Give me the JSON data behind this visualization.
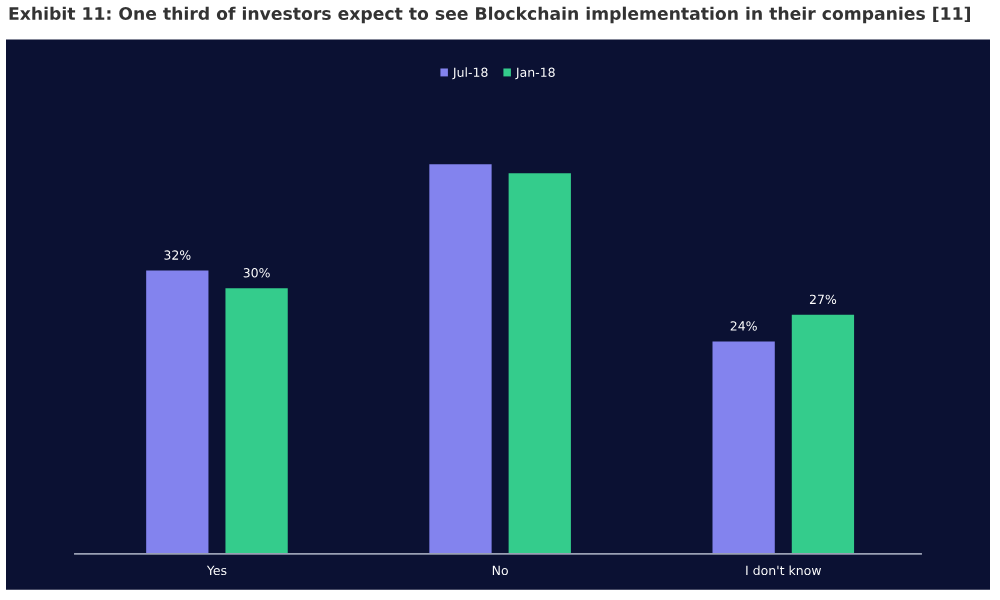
{
  "chart_data": {
    "type": "bar",
    "title": "Exhibit 11: One third of investors expect to see Blockchain implementation in their companies [11]",
    "categories": [
      "Yes",
      "No",
      "I don't know"
    ],
    "series": [
      {
        "name": "Jul-18",
        "color": "#8383ee",
        "values": [
          32,
          44,
          24
        ],
        "value_labels": [
          "32%",
          null,
          "24%"
        ]
      },
      {
        "name": "Jan-18",
        "color": "#34cc8c",
        "values": [
          30,
          43,
          27
        ],
        "value_labels": [
          "30%",
          null,
          "27%"
        ]
      }
    ],
    "legend": "top"
  }
}
